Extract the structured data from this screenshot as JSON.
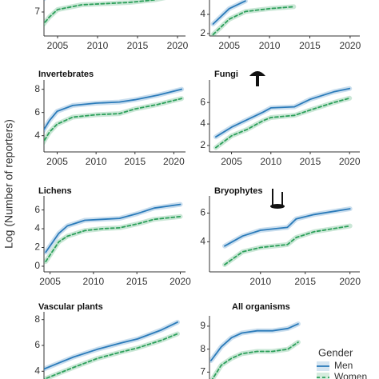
{
  "ylabel": "Log (Number of reporters)",
  "chart_data": [
    {
      "type": "line",
      "x": [
        2003,
        2004,
        2005,
        2008,
        2011,
        2014,
        2017,
        2020
      ],
      "xlim": [
        2003.3,
        2021
      ],
      "ylim": [
        6,
        8
      ],
      "xticks": [
        2005,
        2010,
        2015,
        2020
      ],
      "yticks": [
        7
      ],
      "series": [
        {
          "name": "Men",
          "color": "#2b7bba",
          "style": "solid",
          "values": [
            7.5,
            7.7,
            7.9,
            null,
            null,
            null,
            null,
            null
          ]
        },
        {
          "name": "Women",
          "color": "#2ca05a",
          "style": "dashed",
          "values": [
            6.4,
            6.8,
            7.1,
            7.3,
            7.35,
            7.4,
            7.5,
            7.7
          ]
        }
      ]
    },
    {
      "type": "line",
      "x": [
        2003,
        2005,
        2007,
        2010,
        2013
      ],
      "xlim": [
        2002.55,
        2021.2
      ],
      "ylim": [
        1.75,
        6
      ],
      "xticks": [
        2005,
        2010,
        2015,
        2020
      ],
      "yticks": [
        2,
        4
      ],
      "series": [
        {
          "name": "Men",
          "color": "#2b7bba",
          "style": "solid",
          "values": [
            3.0,
            4.6,
            5.4,
            null,
            null
          ]
        },
        {
          "name": "Women",
          "color": "#2ca05a",
          "style": "dashed",
          "values": [
            1.9,
            3.5,
            4.3,
            4.6,
            4.8
          ]
        }
      ]
    },
    {
      "type": "line",
      "title": "Invertebrates",
      "x": [
        2003,
        2004,
        2005,
        2007,
        2010,
        2013,
        2015,
        2018,
        2021
      ],
      "xlim": [
        2003.3,
        2021.5
      ],
      "ylim": [
        2.6,
        8.8
      ],
      "xticks": [
        2005,
        2010,
        2015,
        2020
      ],
      "yticks": [
        4,
        6,
        8
      ],
      "series": [
        {
          "name": "Men",
          "color": "#2b7bba",
          "style": "solid",
          "values": [
            4.2,
            5.3,
            6.1,
            6.6,
            6.8,
            6.9,
            7.1,
            7.5,
            8.0
          ]
        },
        {
          "name": "Women",
          "color": "#2ca05a",
          "style": "dashed",
          "values": [
            3.2,
            4.3,
            5.0,
            5.6,
            5.8,
            5.9,
            6.3,
            6.7,
            7.2
          ]
        }
      ]
    },
    {
      "type": "line",
      "title": "Fungi",
      "x": [
        2003,
        2005,
        2007,
        2009,
        2010,
        2013,
        2015,
        2018,
        2020
      ],
      "xlim": [
        2002.2,
        2021.3
      ],
      "ylim": [
        1.4,
        8.1
      ],
      "xticks": [
        2005,
        2010,
        2015,
        2020
      ],
      "yticks": [
        2,
        4,
        6
      ],
      "series": [
        {
          "name": "Men",
          "color": "#2b7bba",
          "style": "solid",
          "values": [
            2.8,
            3.7,
            4.4,
            5.1,
            5.5,
            5.6,
            6.3,
            7.0,
            7.3
          ]
        },
        {
          "name": "Women",
          "color": "#2ca05a",
          "style": "dashed",
          "values": [
            1.8,
            2.9,
            3.5,
            4.3,
            4.6,
            4.8,
            5.3,
            6.0,
            6.4
          ]
        }
      ]
    },
    {
      "type": "line",
      "title": "Lichens",
      "x": [
        2004.5,
        2006,
        2007,
        2009,
        2011,
        2013,
        2015,
        2017,
        2020
      ],
      "xlim": [
        2004.3,
        2020.6
      ],
      "ylim": [
        -0.6,
        7.5
      ],
      "xticks": [
        2005,
        2010,
        2015,
        2020
      ],
      "yticks": [
        0,
        2,
        4,
        6
      ],
      "series": [
        {
          "name": "Men",
          "color": "#2b7bba",
          "style": "solid",
          "values": [
            1.5,
            3.5,
            4.3,
            4.9,
            5.0,
            5.1,
            5.6,
            6.2,
            6.6
          ]
        },
        {
          "name": "Women",
          "color": "#2ca05a",
          "style": "dashed",
          "values": [
            0.5,
            2.6,
            3.2,
            3.8,
            4.0,
            4.1,
            4.5,
            5.0,
            5.3
          ]
        }
      ]
    },
    {
      "type": "line",
      "title": "Bryophytes",
      "x": [
        2006,
        2008,
        2010,
        2013,
        2014,
        2016,
        2018,
        2020
      ],
      "xlim": [
        2004.3,
        2021.1
      ],
      "ylim": [
        1.9,
        7.2
      ],
      "xticks": [
        2010,
        2015,
        2020
      ],
      "yticks": [
        4,
        6
      ],
      "series": [
        {
          "name": "Men",
          "color": "#2b7bba",
          "style": "solid",
          "values": [
            3.7,
            4.4,
            4.8,
            5.0,
            5.6,
            5.9,
            6.1,
            6.3
          ]
        },
        {
          "name": "Women",
          "color": "#2ca05a",
          "style": "dashed",
          "values": [
            2.4,
            3.3,
            3.6,
            3.8,
            4.3,
            4.7,
            4.9,
            5.1
          ]
        }
      ]
    },
    {
      "type": "line",
      "title": "Vascular plants",
      "x": [
        2003,
        2005,
        2007,
        2010,
        2013,
        2015,
        2018,
        2020
      ],
      "xlim": [
        2003.3,
        2021
      ],
      "ylim": [
        3.4,
        8.6
      ],
      "yticks": [
        4,
        6,
        8
      ],
      "series": [
        {
          "name": "Men",
          "color": "#2b7bba",
          "style": "solid",
          "values": [
            4.1,
            4.6,
            5.1,
            5.7,
            6.2,
            6.5,
            7.2,
            7.8
          ]
        },
        {
          "name": "Women",
          "color": "#2ca05a",
          "style": "dashed",
          "values": [
            3.3,
            3.8,
            4.3,
            5.0,
            5.5,
            5.8,
            6.4,
            6.9
          ]
        }
      ]
    },
    {
      "type": "line",
      "title": "All organisms",
      "legend_title": "Gender",
      "x": [
        2003,
        2005,
        2007,
        2009,
        2012,
        2015,
        2018,
        2020
      ],
      "xlim": [
        2002.7,
        2020.8
      ],
      "ylim": [
        6.7,
        9.45
      ],
      "yticks": [
        7,
        8,
        9
      ],
      "series": [
        {
          "name": "Men",
          "color": "#2b7bba",
          "style": "solid",
          "values": [
            7.5,
            8.1,
            8.5,
            8.7,
            8.8,
            8.8,
            8.9,
            9.1
          ]
        },
        {
          "name": "Women",
          "color": "#2ca05a",
          "style": "dashed",
          "values": [
            6.6,
            7.3,
            7.6,
            7.8,
            7.9,
            7.9,
            8.0,
            8.3
          ]
        }
      ]
    }
  ]
}
